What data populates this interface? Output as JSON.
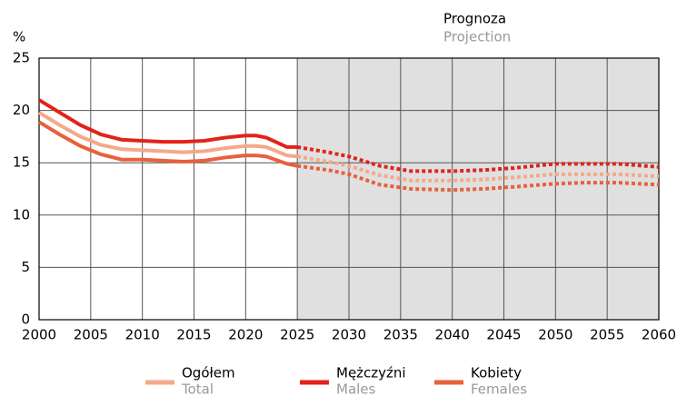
{
  "chart_data": {
    "type": "line",
    "y_label": "%",
    "projection_label": "Prognoza",
    "projection_label_en": "Projection",
    "projection_from": 2025,
    "projection_fill": "#e0e0e0",
    "x": [
      2000,
      2002,
      2004,
      2006,
      2008,
      2010,
      2012,
      2014,
      2016,
      2018,
      2020,
      2021,
      2022,
      2024,
      2025,
      2028,
      2030,
      2033,
      2036,
      2040,
      2043,
      2046,
      2050,
      2053,
      2056,
      2060
    ],
    "series": [
      {
        "name": "Ogółem",
        "name_en": "Total",
        "color": "#f3a98a",
        "values": [
          19.8,
          18.6,
          17.5,
          16.7,
          16.3,
          16.2,
          16.1,
          16.0,
          16.1,
          16.4,
          16.6,
          16.6,
          16.5,
          15.7,
          15.6,
          15.1,
          14.7,
          13.8,
          13.3,
          13.3,
          13.4,
          13.6,
          13.9,
          13.9,
          13.9,
          13.7
        ]
      },
      {
        "name": "Mężczyźni",
        "name_en": "Males",
        "color": "#e2231a",
        "values": [
          21.0,
          19.8,
          18.6,
          17.7,
          17.2,
          17.1,
          17.0,
          17.0,
          17.1,
          17.4,
          17.6,
          17.6,
          17.4,
          16.5,
          16.5,
          16.0,
          15.6,
          14.7,
          14.2,
          14.2,
          14.3,
          14.5,
          14.9,
          14.9,
          14.9,
          14.6
        ]
      },
      {
        "name": "Kobiety",
        "name_en": "Females",
        "color": "#e8603c",
        "values": [
          18.9,
          17.7,
          16.6,
          15.8,
          15.3,
          15.3,
          15.2,
          15.1,
          15.2,
          15.5,
          15.7,
          15.7,
          15.6,
          14.9,
          14.7,
          14.3,
          13.9,
          12.9,
          12.5,
          12.4,
          12.5,
          12.7,
          13.0,
          13.1,
          13.1,
          12.9
        ]
      }
    ],
    "xlim": [
      2000,
      2060
    ],
    "xticks": [
      2000,
      2005,
      2010,
      2015,
      2020,
      2025,
      2030,
      2035,
      2040,
      2045,
      2050,
      2055,
      2060
    ],
    "ylim": [
      0,
      25
    ],
    "yticks": [
      0,
      5,
      10,
      15,
      20,
      25
    ],
    "grid": true
  }
}
